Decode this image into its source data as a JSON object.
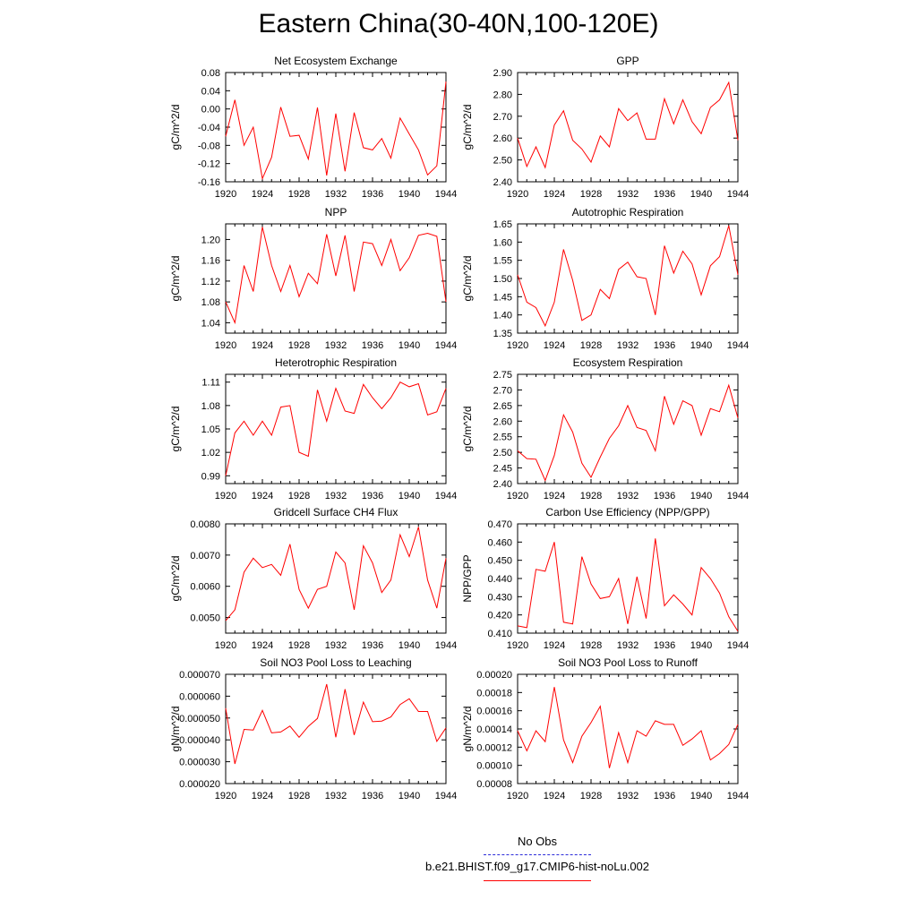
{
  "title": "Eastern China(30-40N,100-120E)",
  "legend": {
    "obs_label": "No Obs",
    "obs_color": "#2b2bd9",
    "case_label": "b.e21.BHIST.f09_g17.CMIP6-hist-noLu.002",
    "case_color": "#ff0000"
  },
  "chart_data": [
    {
      "type": "line",
      "title": "Net Ecosystem Exchange",
      "ylabel": "gC/m^2/d",
      "xlim": [
        1920,
        1944
      ],
      "ylim": [
        -0.16,
        0.08
      ],
      "x_ticks": [
        "1920",
        "1924",
        "1928",
        "1932",
        "1936",
        "1940",
        "1944"
      ],
      "y_ticks": [
        "0.08",
        "0.04",
        "0.00",
        "-0.04",
        "-0.08",
        "-0.12",
        "-0.16"
      ],
      "x": [
        1920,
        1921,
        1922,
        1923,
        1924,
        1925,
        1926,
        1927,
        1928,
        1929,
        1930,
        1931,
        1932,
        1933,
        1934,
        1935,
        1936,
        1937,
        1938,
        1939,
        1940,
        1941,
        1942,
        1943,
        1944
      ],
      "values": [
        -0.06,
        0.02,
        -0.08,
        -0.04,
        -0.153,
        -0.106,
        0.004,
        -0.06,
        -0.058,
        -0.11,
        0.003,
        -0.146,
        -0.01,
        -0.137,
        -0.008,
        -0.085,
        -0.09,
        -0.065,
        -0.108,
        -0.02,
        -0.055,
        -0.09,
        -0.145,
        -0.125,
        0.06
      ]
    },
    {
      "type": "line",
      "title": "GPP",
      "ylabel": "gC/m^2/d",
      "xlim": [
        1920,
        1944
      ],
      "ylim": [
        2.4,
        2.9
      ],
      "x_ticks": [
        "1920",
        "1924",
        "1928",
        "1932",
        "1936",
        "1940",
        "1944"
      ],
      "y_ticks": [
        "2.90",
        "2.80",
        "2.70",
        "2.60",
        "2.50",
        "2.40"
      ],
      "x": [
        1920,
        1921,
        1922,
        1923,
        1924,
        1925,
        1926,
        1927,
        1928,
        1929,
        1930,
        1931,
        1932,
        1933,
        1934,
        1935,
        1936,
        1937,
        1938,
        1939,
        1940,
        1941,
        1942,
        1943,
        1944
      ],
      "values": [
        2.6,
        2.47,
        2.56,
        2.465,
        2.66,
        2.725,
        2.59,
        2.55,
        2.49,
        2.61,
        2.56,
        2.735,
        2.68,
        2.715,
        2.595,
        2.595,
        2.78,
        2.665,
        2.775,
        2.675,
        2.62,
        2.74,
        2.775,
        2.855,
        2.59
      ]
    },
    {
      "type": "line",
      "title": "NPP",
      "ylabel": "gC/m^2/d",
      "xlim": [
        1920,
        1944
      ],
      "ylim": [
        1.02,
        1.23
      ],
      "x_ticks": [
        "1920",
        "1924",
        "1928",
        "1932",
        "1936",
        "1940",
        "1944"
      ],
      "y_ticks": [
        "1.20",
        "1.16",
        "1.12",
        "1.08",
        "1.04"
      ],
      "x": [
        1920,
        1921,
        1922,
        1923,
        1924,
        1925,
        1926,
        1927,
        1928,
        1929,
        1930,
        1931,
        1932,
        1933,
        1934,
        1935,
        1936,
        1937,
        1938,
        1939,
        1940,
        1941,
        1942,
        1943,
        1944
      ],
      "values": [
        1.08,
        1.04,
        1.15,
        1.1,
        1.224,
        1.15,
        1.1,
        1.15,
        1.09,
        1.135,
        1.115,
        1.21,
        1.13,
        1.208,
        1.1,
        1.195,
        1.192,
        1.15,
        1.2,
        1.14,
        1.165,
        1.208,
        1.212,
        1.206,
        1.08
      ]
    },
    {
      "type": "line",
      "title": "Autotrophic Respiration",
      "ylabel": "gC/m^2/d",
      "xlim": [
        1920,
        1944
      ],
      "ylim": [
        1.35,
        1.65
      ],
      "x_ticks": [
        "1920",
        "1924",
        "1928",
        "1932",
        "1936",
        "1940",
        "1944"
      ],
      "y_ticks": [
        "1.65",
        "1.60",
        "1.55",
        "1.50",
        "1.45",
        "1.40",
        "1.35"
      ],
      "x": [
        1920,
        1921,
        1922,
        1923,
        1924,
        1925,
        1926,
        1927,
        1928,
        1929,
        1930,
        1931,
        1932,
        1933,
        1934,
        1935,
        1936,
        1937,
        1938,
        1939,
        1940,
        1941,
        1942,
        1943,
        1944
      ],
      "values": [
        1.51,
        1.435,
        1.42,
        1.37,
        1.435,
        1.58,
        1.495,
        1.385,
        1.4,
        1.47,
        1.445,
        1.525,
        1.545,
        1.505,
        1.5,
        1.4,
        1.59,
        1.515,
        1.575,
        1.54,
        1.455,
        1.535,
        1.56,
        1.645,
        1.51
      ]
    },
    {
      "type": "line",
      "title": "Heterotrophic Respiration",
      "ylabel": "gC/m^2/d",
      "xlim": [
        1920,
        1944
      ],
      "ylim": [
        0.98,
        1.12
      ],
      "x_ticks": [
        "1920",
        "1924",
        "1928",
        "1932",
        "1936",
        "1940",
        "1944"
      ],
      "y_ticks": [
        "1.11",
        "1.08",
        "1.05",
        "1.02",
        "0.99"
      ],
      "x": [
        1920,
        1921,
        1922,
        1923,
        1924,
        1925,
        1926,
        1927,
        1928,
        1929,
        1930,
        1931,
        1932,
        1933,
        1934,
        1935,
        1936,
        1937,
        1938,
        1939,
        1940,
        1941,
        1942,
        1943,
        1944
      ],
      "values": [
        0.99,
        1.045,
        1.06,
        1.042,
        1.06,
        1.042,
        1.078,
        1.08,
        1.02,
        1.015,
        1.1,
        1.06,
        1.102,
        1.073,
        1.07,
        1.107,
        1.09,
        1.076,
        1.09,
        1.11,
        1.104,
        1.108,
        1.068,
        1.072,
        1.102
      ]
    },
    {
      "type": "line",
      "title": "Ecosystem Respiration",
      "ylabel": "gC/m^2/d",
      "xlim": [
        1920,
        1944
      ],
      "ylim": [
        2.4,
        2.75
      ],
      "x_ticks": [
        "1920",
        "1924",
        "1928",
        "1932",
        "1936",
        "1940",
        "1944"
      ],
      "y_ticks": [
        "2.75",
        "2.70",
        "2.65",
        "2.60",
        "2.55",
        "2.50",
        "2.45",
        "2.40"
      ],
      "x": [
        1920,
        1921,
        1922,
        1923,
        1924,
        1925,
        1926,
        1927,
        1928,
        1929,
        1930,
        1931,
        1932,
        1933,
        1934,
        1935,
        1936,
        1937,
        1938,
        1939,
        1940,
        1941,
        1942,
        1943,
        1944
      ],
      "values": [
        2.505,
        2.48,
        2.478,
        2.41,
        2.49,
        2.62,
        2.565,
        2.465,
        2.42,
        2.485,
        2.545,
        2.585,
        2.65,
        2.58,
        2.57,
        2.505,
        2.68,
        2.59,
        2.665,
        2.65,
        2.555,
        2.64,
        2.63,
        2.715,
        2.61
      ]
    },
    {
      "type": "line",
      "title": "Gridcell Surface CH4 Flux",
      "ylabel": "gC/m^2/d",
      "xlim": [
        1920,
        1944
      ],
      "ylim": [
        0.0045,
        0.008
      ],
      "x_ticks": [
        "1920",
        "1924",
        "1928",
        "1932",
        "1936",
        "1940",
        "1944"
      ],
      "y_ticks": [
        "0.0080",
        "0.0070",
        "0.0060",
        "0.0050"
      ],
      "x": [
        1920,
        1921,
        1922,
        1923,
        1924,
        1925,
        1926,
        1927,
        1928,
        1929,
        1930,
        1931,
        1932,
        1933,
        1934,
        1935,
        1936,
        1937,
        1938,
        1939,
        1940,
        1941,
        1942,
        1943,
        1944
      ],
      "values": [
        0.0049,
        0.00525,
        0.00645,
        0.0069,
        0.0066,
        0.0067,
        0.00635,
        0.00735,
        0.0059,
        0.0053,
        0.0059,
        0.006,
        0.0071,
        0.00675,
        0.00525,
        0.0073,
        0.00675,
        0.0058,
        0.0062,
        0.00765,
        0.00695,
        0.0079,
        0.0062,
        0.0053,
        0.0069
      ]
    },
    {
      "type": "line",
      "title": "Carbon Use Efficiency (NPP/GPP)",
      "ylabel": "NPP/GPP",
      "xlim": [
        1920,
        1944
      ],
      "ylim": [
        0.41,
        0.47
      ],
      "x_ticks": [
        "1920",
        "1924",
        "1928",
        "1932",
        "1936",
        "1940",
        "1944"
      ],
      "y_ticks": [
        "0.470",
        "0.460",
        "0.450",
        "0.440",
        "0.430",
        "0.420",
        "0.410"
      ],
      "x": [
        1920,
        1921,
        1922,
        1923,
        1924,
        1925,
        1926,
        1927,
        1928,
        1929,
        1930,
        1931,
        1932,
        1933,
        1934,
        1935,
        1936,
        1937,
        1938,
        1939,
        1940,
        1941,
        1942,
        1943,
        1944
      ],
      "values": [
        0.414,
        0.413,
        0.445,
        0.444,
        0.46,
        0.416,
        0.415,
        0.452,
        0.437,
        0.429,
        0.43,
        0.44,
        0.415,
        0.441,
        0.418,
        0.462,
        0.425,
        0.431,
        0.426,
        0.42,
        0.446,
        0.44,
        0.432,
        0.419,
        0.411
      ]
    },
    {
      "type": "line",
      "title": "Soil NO3 Pool Loss to Leaching",
      "ylabel": "gN/m^2/d",
      "xlim": [
        1920,
        1944
      ],
      "ylim": [
        2e-05,
        7e-05
      ],
      "x_ticks": [
        "1920",
        "1924",
        "1928",
        "1932",
        "1936",
        "1940",
        "1944"
      ],
      "y_ticks": [
        "0.000070",
        "0.000060",
        "0.000050",
        "0.000040",
        "0.000030",
        "0.000020"
      ],
      "x": [
        1920,
        1921,
        1922,
        1923,
        1924,
        1925,
        1926,
        1927,
        1928,
        1929,
        1930,
        1931,
        1932,
        1933,
        1934,
        1935,
        1936,
        1937,
        1938,
        1939,
        1940,
        1941,
        1942,
        1943,
        1944
      ],
      "values": [
        5.45e-05,
        2.9e-05,
        4.48e-05,
        4.45e-05,
        5.35e-05,
        4.32e-05,
        4.36e-05,
        4.63e-05,
        4.12e-05,
        4.62e-05,
        4.98e-05,
        6.55e-05,
        4.12e-05,
        6.32e-05,
        4.22e-05,
        5.73e-05,
        4.83e-05,
        4.86e-05,
        5.05e-05,
        5.62e-05,
        5.88e-05,
        5.3e-05,
        5.3e-05,
        3.93e-05,
        4.55e-05
      ]
    },
    {
      "type": "line",
      "title": "Soil NO3 Pool Loss to Runoff",
      "ylabel": "gN/m^2/d",
      "xlim": [
        1920,
        1944
      ],
      "ylim": [
        8e-05,
        0.0002
      ],
      "x_ticks": [
        "1920",
        "1924",
        "1928",
        "1932",
        "1936",
        "1940",
        "1944"
      ],
      "y_ticks": [
        "0.00020",
        "0.00018",
        "0.00016",
        "0.00014",
        "0.00012",
        "0.00010",
        "0.00008"
      ],
      "x": [
        1920,
        1921,
        1922,
        1923,
        1924,
        1925,
        1926,
        1927,
        1928,
        1929,
        1930,
        1931,
        1932,
        1933,
        1934,
        1935,
        1936,
        1937,
        1938,
        1939,
        1940,
        1941,
        1942,
        1943,
        1944
      ],
      "values": [
        0.000138,
        0.000116,
        0.000138,
        0.000126,
        0.000186,
        0.000128,
        0.000103,
        0.000132,
        0.000147,
        0.000165,
        9.7e-05,
        0.000136,
        0.000103,
        0.000138,
        0.000132,
        0.000149,
        0.000145,
        0.000145,
        0.000122,
        0.000129,
        0.000138,
        0.000106,
        0.000113,
        0.000123,
        0.000145
      ]
    }
  ]
}
